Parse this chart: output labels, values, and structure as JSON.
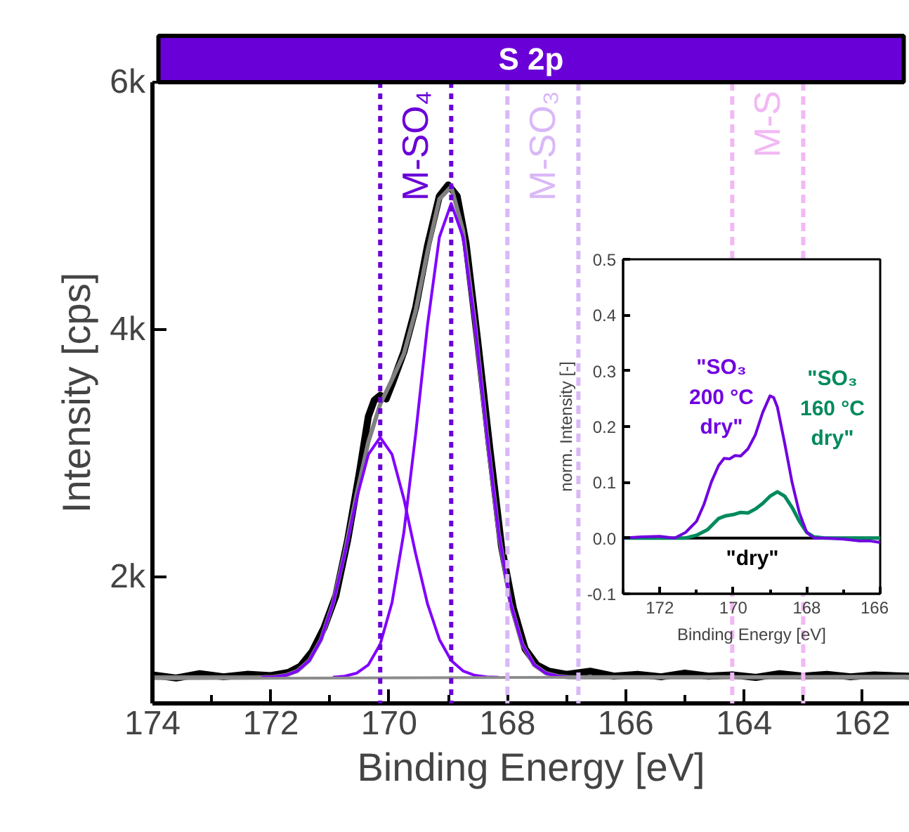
{
  "chart_data": [
    {
      "type": "line",
      "title": "S 2p",
      "xlabel": "Binding Energy [eV]",
      "ylabel": "Intensity [cps]",
      "xlim": [
        174,
        161.2
      ],
      "ylim": [
        980,
        6000
      ],
      "xticks": [
        174,
        {
          "value": 173,
          "label": null
        },
        172,
        {
          "value": 171,
          "label": null
        },
        170,
        {
          "value": 169,
          "label": null
        },
        168,
        {
          "value": 167,
          "label": null
        },
        166,
        {
          "value": 165,
          "label": null
        },
        164,
        {
          "value": 163,
          "label": null
        },
        162
      ],
      "yticks": [
        {
          "value": 2000,
          "label": "2k"
        },
        {
          "value": 4000,
          "label": "4k"
        },
        {
          "value": 6000,
          "label": "6k"
        }
      ],
      "series": [
        {
          "color": "#000000",
          "x": [
            174,
            173.6,
            173.2,
            172.8,
            172.4,
            172.0,
            171.7,
            171.5,
            171.3,
            171.1,
            170.9,
            170.7,
            170.5,
            170.35,
            170.25,
            170.15,
            170.05,
            169.95,
            169.75,
            169.55,
            169.35,
            169.15,
            169.0,
            168.85,
            168.7,
            168.5,
            168.3,
            168.1,
            167.9,
            167.7,
            167.5,
            167.3,
            167.0,
            166.6,
            166.2,
            165.8,
            165.4,
            165.0,
            164.6,
            164.2,
            163.8,
            163.4,
            163.0,
            162.6,
            162.2,
            161.8,
            161.2
          ],
          "values": [
            1210,
            1185,
            1220,
            1195,
            1215,
            1205,
            1230,
            1280,
            1400,
            1590,
            1850,
            2300,
            2850,
            3300,
            3430,
            3470,
            3440,
            3560,
            3820,
            4180,
            4680,
            5080,
            5170,
            5080,
            4700,
            3900,
            3050,
            2250,
            1750,
            1420,
            1290,
            1240,
            1215,
            1240,
            1200,
            1215,
            1195,
            1225,
            1200,
            1210,
            1190,
            1220,
            1200,
            1215,
            1195,
            1210,
            1200
          ]
        },
        {
          "color": "#808080",
          "x": [
            174,
            172.15,
            171.95,
            171.75,
            171.55,
            171.35,
            171.15,
            170.95,
            170.75,
            170.55,
            170.35,
            170.15,
            169.95,
            169.75,
            169.55,
            169.35,
            169.15,
            168.95,
            168.75,
            168.55,
            168.35,
            168.15,
            167.95,
            167.75,
            167.55,
            167.35,
            167.15,
            166.95,
            161.2
          ],
          "values": [
            1190,
            1191,
            1195,
            1207,
            1242,
            1326,
            1497,
            1786,
            2197,
            2667,
            3094,
            3398,
            3597,
            3805,
            4156,
            4634,
            5055,
            5156,
            4800,
            4057,
            3164,
            2363,
            1795,
            1458,
            1292,
            1224,
            1200,
            1192,
            1190
          ]
        },
        {
          "color": "#8000ff",
          "x": [
            172.15,
            171.95,
            171.75,
            171.55,
            171.35,
            171.15,
            170.95,
            170.75,
            170.55,
            170.35,
            170.15,
            169.95,
            169.75,
            169.55,
            169.35,
            169.15,
            168.95,
            168.75,
            168.55,
            168.35,
            168.15
          ],
          "values": [
            1191,
            1195,
            1207,
            1242,
            1326,
            1497,
            1784,
            2187,
            2633,
            2992,
            3130,
            2992,
            2633,
            2187,
            1784,
            1497,
            1326,
            1242,
            1207,
            1195,
            1191
          ]
        },
        {
          "color": "#8000ff",
          "x": [
            170.95,
            170.75,
            170.55,
            170.35,
            170.15,
            169.95,
            169.75,
            169.55,
            169.35,
            169.15,
            168.95,
            168.75,
            168.55,
            168.35,
            168.15,
            167.95,
            167.75,
            167.55,
            167.35,
            167.15,
            166.95
          ],
          "values": [
            1192,
            1200,
            1224,
            1292,
            1458,
            1795,
            2362,
            3159,
            4040,
            4748,
            5020,
            4748,
            4040,
            3159,
            2362,
            1795,
            1458,
            1292,
            1224,
            1200,
            1192
          ]
        },
        {
          "color": "#8c8c8c",
          "x": [
            174,
            161.2
          ],
          "values": [
            1180,
            1200
          ]
        }
      ],
      "ref_lines": [
        {
          "axis": "x",
          "value": 170.15,
          "label": "M-SO₄",
          "color": "#6a00d8",
          "line_style": "dotted"
        },
        {
          "axis": "x",
          "value": 168.95,
          "color": "#6a00d8",
          "line_style": "dotted"
        },
        {
          "axis": "x",
          "value": 168.0,
          "label": "M-SO₃",
          "color": "#d9b8f7",
          "line_style": "dashed"
        },
        {
          "axis": "x",
          "value": 166.8,
          "color": "#d9b8f7",
          "line_style": "dashed"
        },
        {
          "axis": "x",
          "value": 164.2,
          "label": "M-S",
          "color": "#f2b8f5",
          "line_style": "dashed"
        },
        {
          "axis": "x",
          "value": 163.0,
          "color": "#f2b8f5",
          "line_style": "dashed"
        }
      ]
    },
    {
      "type": "line",
      "xlabel": "Binding Energy [eV]",
      "ylabel": "norm. Intensity [-]",
      "xlim": [
        173,
        166
      ],
      "ylim": [
        -0.1,
        0.5
      ],
      "xticks": [
        {
          "value": 173,
          "label": null
        },
        172,
        {
          "value": 171,
          "label": null
        },
        170,
        {
          "value": 169,
          "label": null
        },
        168,
        {
          "value": 167,
          "label": null
        },
        166
      ],
      "yticks": [
        -0.1,
        {
          "value": 0,
          "label": "0.0"
        },
        0.1,
        0.2,
        0.3,
        0.4,
        0.5
      ],
      "series": [
        {
          "name": "\"dry\"",
          "color": "#000000",
          "x": [
            173,
            166
          ],
          "values": [
            0,
            0
          ]
        },
        {
          "name": "\"SO₃\n160 °C\ndry\"",
          "color": "#008a5e",
          "x": [
            173,
            172,
            171.3,
            171.0,
            170.7,
            170.4,
            170.2,
            170.0,
            169.8,
            169.6,
            169.4,
            169.2,
            169.0,
            168.8,
            168.6,
            168.4,
            168.2,
            168.0,
            167.8,
            167.5,
            166
          ],
          "values": [
            0,
            0,
            0,
            0.005,
            0.015,
            0.035,
            0.04,
            0.042,
            0.046,
            0.045,
            0.052,
            0.062,
            0.075,
            0.083,
            0.075,
            0.055,
            0.03,
            0.01,
            0.002,
            0,
            0
          ]
        },
        {
          "name": "\"SO₃\n200 °C\ndry\"",
          "color": "#7000e0",
          "x": [
            173,
            172.5,
            172,
            171.6,
            171.3,
            171.0,
            170.8,
            170.6,
            170.4,
            170.25,
            170.1,
            169.95,
            169.8,
            169.6,
            169.4,
            169.2,
            169.0,
            168.9,
            168.8,
            168.6,
            168.4,
            168.2,
            168.0,
            167.8,
            167.5,
            167.0,
            166.6,
            166.3,
            166.0
          ],
          "values": [
            0,
            0.002,
            0.003,
            0,
            0.01,
            0.03,
            0.06,
            0.1,
            0.13,
            0.143,
            0.142,
            0.148,
            0.147,
            0.16,
            0.185,
            0.225,
            0.255,
            0.252,
            0.235,
            0.17,
            0.1,
            0.045,
            0.01,
            0,
            0,
            -0.002,
            -0.005,
            -0.005,
            -0.008
          ]
        }
      ]
    }
  ]
}
